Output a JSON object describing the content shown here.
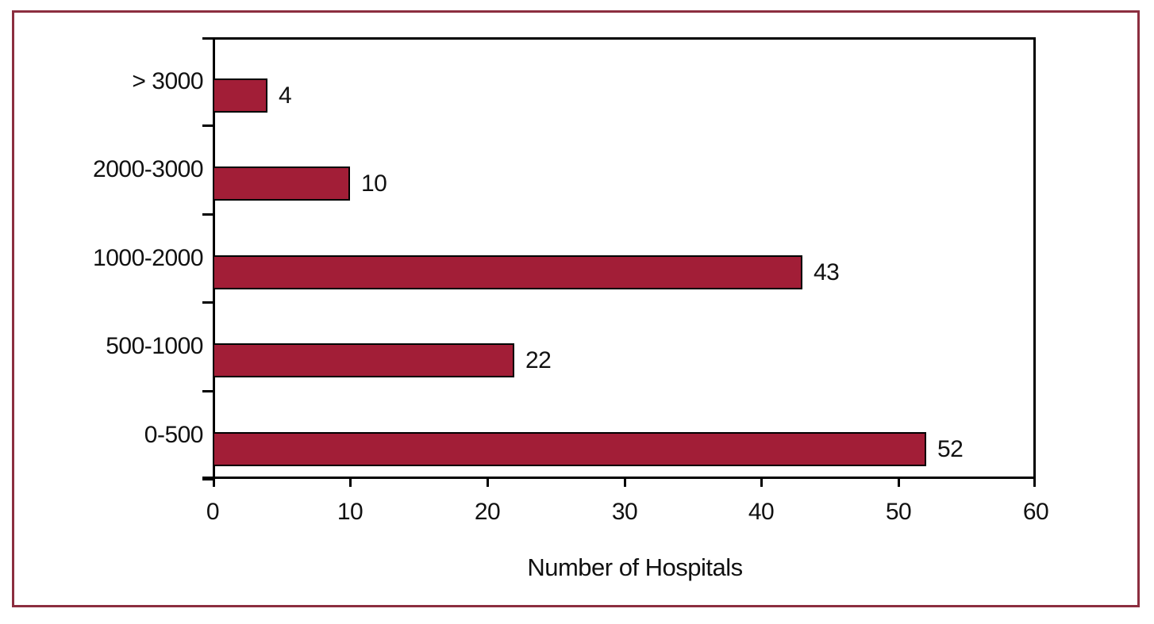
{
  "chart_data": {
    "type": "bar",
    "orientation": "horizontal",
    "categories": [
      "> 3000",
      "2000-3000",
      "1000-2000",
      "500-1000",
      "0-500"
    ],
    "values": [
      4,
      10,
      43,
      22,
      52
    ],
    "title": "",
    "xlabel": "Number of Hospitals",
    "ylabel": "",
    "xlim": [
      0,
      60
    ],
    "x_ticks": [
      "0",
      "10",
      "20",
      "30",
      "40",
      "50",
      "60"
    ],
    "grid": "off",
    "legend": "none",
    "bar_color": "#a21e37",
    "bar_border_color": "#000000",
    "axis_color": "#000000",
    "frame_border_color": "#8c2e3f"
  }
}
